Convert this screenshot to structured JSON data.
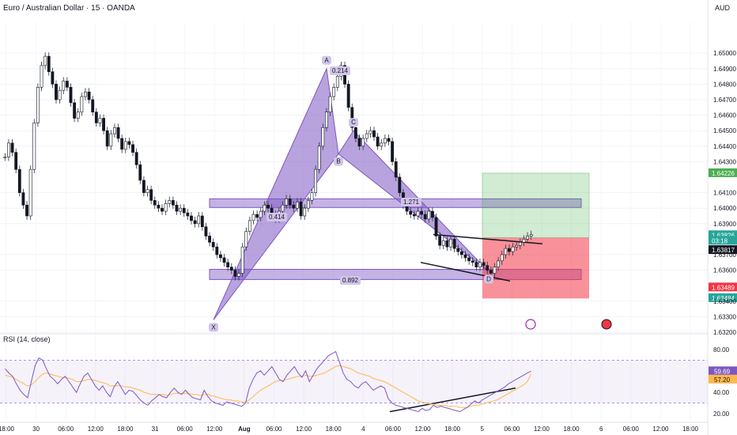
{
  "header": {
    "title": "Euro / Australian Dollar · 15 · OANDA",
    "currency": "AUD"
  },
  "rsi": {
    "title": "RSI (14, close)",
    "value_label": "59.69",
    "ma_label": "57.20"
  },
  "chart_data": [
    {
      "type": "candlestick",
      "title": "Euro / Australian Dollar · 15 · OANDA",
      "ylabel": "AUD",
      "ylim": [
        1.632,
        1.652
      ],
      "y_ticks": [
        "1.65000",
        "1.64900",
        "1.64800",
        "1.64700",
        "1.64600",
        "1.64500",
        "1.64400",
        "1.64300",
        "1.64100",
        "1.64000",
        "1.63900",
        "1.63700",
        "1.63600",
        "1.63400",
        "1.63300",
        "1.63200"
      ],
      "x_ticks": [
        "18:00",
        "30",
        "06:00",
        "12:00",
        "18:00",
        "31",
        "06:00",
        "12:00",
        "Aug",
        "06:00",
        "12:00",
        "18:00",
        "4",
        "06:00",
        "12:00",
        "18:00",
        "5",
        "06:00",
        "12:00",
        "18:00",
        "6",
        "06:00",
        "12:00",
        "18:00"
      ],
      "price_labels": [
        {
          "text": "1.64226",
          "kind": "target"
        },
        {
          "text": "1.63826",
          "kind": "last"
        },
        {
          "text": "03:18",
          "kind": "countdown"
        },
        {
          "text": "1.63817",
          "kind": "current"
        },
        {
          "text": "1.63489",
          "kind": "stop"
        },
        {
          "text": "1.63484",
          "kind": "entry"
        }
      ],
      "pattern_points": [
        {
          "label": "X",
          "price": 1.6328
        },
        {
          "label": "A",
          "price": 1.649
        },
        {
          "label": "B",
          "price": 1.6435
        },
        {
          "label": "C",
          "price": 1.645
        },
        {
          "label": "D",
          "price": 1.6359
        }
      ],
      "ratio_labels": [
        "0.214",
        "0.414",
        "0.892",
        "1.271"
      ],
      "zones": [
        {
          "kind": "resistance",
          "low": 1.6402,
          "high": 1.64045
        },
        {
          "kind": "support",
          "low": 1.63555,
          "high": 1.6359
        }
      ],
      "position": {
        "target": 1.64226,
        "entry": 1.63484,
        "stop": 1.63489
      },
      "series": [
        {
          "values": [
            1.6433,
            1.6442,
            1.6436,
            1.6425,
            1.641,
            1.6402,
            1.6395,
            1.6425,
            1.6455,
            1.6478,
            1.6492,
            1.6498,
            1.6488,
            1.648,
            1.647,
            1.6476,
            1.6482,
            1.6478,
            1.6468,
            1.6458,
            1.6462,
            1.6472,
            1.6475,
            1.647,
            1.6462,
            1.6455,
            1.6458,
            1.645,
            1.644,
            1.6448,
            1.6452,
            1.6445,
            1.6438,
            1.6443,
            1.6441,
            1.6436,
            1.6428,
            1.6418,
            1.641,
            1.6412,
            1.6405,
            1.6402,
            1.64,
            1.6398,
            1.6403,
            1.6405,
            1.6402,
            1.6398,
            1.64,
            1.6397,
            1.6395,
            1.6392,
            1.639,
            1.6395,
            1.6388,
            1.6382,
            1.6378,
            1.6375,
            1.637,
            1.6368,
            1.6365,
            1.6362,
            1.636,
            1.6356,
            1.6358,
            1.6375,
            1.6385,
            1.6392,
            1.6396,
            1.6394,
            1.6398,
            1.6402,
            1.64,
            1.6396,
            1.6393,
            1.6398,
            1.6402,
            1.6406,
            1.6402,
            1.64,
            1.6404,
            1.6395,
            1.64,
            1.6405,
            1.641,
            1.6425,
            1.644,
            1.6452,
            1.6462,
            1.6472,
            1.6478,
            1.6485,
            1.6492,
            1.648,
            1.6465,
            1.6452,
            1.6445,
            1.644,
            1.6445,
            1.6448,
            1.645,
            1.6446,
            1.644,
            1.6442,
            1.6445,
            1.6443,
            1.643,
            1.642,
            1.641,
            1.6402,
            1.6398,
            1.6396,
            1.6395,
            1.6398,
            1.6396,
            1.6393,
            1.6398,
            1.6394,
            1.6382,
            1.6376,
            1.6379,
            1.6375,
            1.638,
            1.6374,
            1.6372,
            1.637,
            1.6368,
            1.6366,
            1.6365,
            1.6362,
            1.6365,
            1.6363,
            1.636,
            1.6358,
            1.6362,
            1.6366,
            1.637,
            1.6374,
            1.6372,
            1.6375,
            1.6376,
            1.6378,
            1.638,
            1.6382,
            1.6383
          ]
        }
      ]
    },
    {
      "type": "line",
      "title": "RSI (14, close)",
      "ylim": [
        15,
        85
      ],
      "y_ticks": [
        "80.00",
        "40.00",
        "20.00"
      ],
      "bands": [
        30,
        70
      ],
      "series": [
        {
          "values": [
            62,
            58,
            55,
            48,
            42,
            38,
            35,
            50,
            65,
            72,
            70,
            62,
            55,
            52,
            48,
            52,
            55,
            50,
            45,
            40,
            48,
            55,
            58,
            52,
            46,
            42,
            46,
            40,
            36,
            45,
            50,
            44,
            38,
            42,
            41,
            37,
            33,
            30,
            28,
            32,
            35,
            38,
            36,
            35,
            40,
            44,
            40,
            38,
            42,
            38,
            35,
            34,
            33,
            42,
            36,
            32,
            30,
            29,
            28,
            31,
            30,
            29,
            28,
            27,
            30,
            44,
            52,
            58,
            60,
            56,
            60,
            64,
            58,
            52,
            50,
            56,
            60,
            64,
            58,
            54,
            60,
            50,
            56,
            62,
            66,
            70,
            74,
            76,
            78,
            68,
            58,
            52,
            50,
            46,
            44,
            48,
            50,
            46,
            42,
            44,
            46,
            44,
            34,
            30,
            28,
            27,
            26,
            25,
            24,
            23,
            22,
            25,
            23,
            24,
            28,
            26,
            27,
            26,
            25,
            24,
            23,
            22,
            24,
            26,
            29,
            32,
            30,
            33,
            35,
            37,
            39,
            41,
            43,
            45,
            48,
            50,
            52,
            54,
            56,
            58,
            59.69
          ]
        },
        {
          "values": [
            56,
            55,
            54,
            52,
            50,
            48,
            46,
            47,
            50,
            54,
            57,
            58,
            57,
            56,
            55,
            54,
            54,
            53,
            52,
            50,
            50,
            51,
            52,
            52,
            51,
            50,
            49,
            48,
            46,
            46,
            46,
            46,
            45,
            45,
            44,
            43,
            42,
            40,
            39,
            38,
            38,
            38,
            38,
            37,
            38,
            39,
            39,
            39,
            39,
            39,
            38,
            38,
            37,
            38,
            38,
            37,
            36,
            35,
            34,
            33,
            33,
            32,
            32,
            31,
            31,
            33,
            36,
            39,
            42,
            44,
            46,
            48,
            50,
            51,
            51,
            52,
            53,
            54,
            55,
            55,
            56,
            55,
            55,
            56,
            57,
            58,
            60,
            62,
            64,
            65,
            64,
            63,
            62,
            60,
            58,
            57,
            56,
            55,
            53,
            52,
            51,
            50,
            48,
            46,
            44,
            42,
            40,
            38,
            36,
            34,
            32,
            31,
            30,
            29,
            29,
            28,
            28,
            28,
            27,
            27,
            27,
            26,
            26,
            26,
            27,
            28,
            28,
            29,
            30,
            31,
            32,
            33,
            35,
            37,
            39,
            41,
            43,
            45,
            47,
            50,
            57.2
          ]
        }
      ]
    }
  ]
}
